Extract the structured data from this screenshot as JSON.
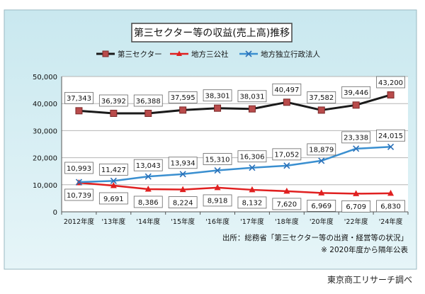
{
  "chart_data": {
    "type": "line",
    "title": "第三セクター等の収益(売上高)推移",
    "categories": [
      "2012年度",
      "'13年度",
      "'14年度",
      "'15年度",
      "'16年度",
      "'17年度",
      "'18年度",
      "'20年度",
      "'22年度",
      "'24年度"
    ],
    "series": [
      {
        "name": "第三セクター",
        "values": [
          37343,
          36392,
          36388,
          37595,
          38301,
          38031,
          40497,
          37582,
          39446,
          43200
        ],
        "labels": [
          "37,343",
          "36,392",
          "36,388",
          "37,595",
          "38,301",
          "38,031",
          "40,497",
          "37,582",
          "39,446",
          "43,200"
        ],
        "color": "#1a1a1a",
        "marker": "square"
      },
      {
        "name": "地方三公社",
        "values": [
          10739,
          9691,
          8386,
          8224,
          8918,
          8132,
          7620,
          6969,
          6709,
          6830
        ],
        "labels": [
          "10,739",
          "9,691",
          "8,386",
          "8,224",
          "8,918",
          "8,132",
          "7,620",
          "6,969",
          "6,709",
          "6,830"
        ],
        "color": "#e02020",
        "marker": "triangle"
      },
      {
        "name": "地方独立行政法人",
        "values": [
          10993,
          11427,
          13043,
          13934,
          15310,
          16306,
          17052,
          18879,
          23338,
          24015
        ],
        "labels": [
          "10,993",
          "11,427",
          "13,043",
          "13,934",
          "15,310",
          "16,306",
          "17,052",
          "18,879",
          "23,338",
          "24,015"
        ],
        "color": "#3a8fd0",
        "marker": "x"
      }
    ],
    "ylim": [
      0,
      50000
    ],
    "yticks": [
      0,
      10000,
      20000,
      30000,
      40000,
      50000
    ],
    "ytick_labels": [
      "0",
      "10,000",
      "20,000",
      "30,000",
      "40,000",
      "50,000"
    ],
    "grid": true,
    "legend_position": "top",
    "source_line1": "出所：総務省「第三セクター等の出資・経営等の状況」",
    "source_line2": "※ 2020年度から隔年公表"
  },
  "credit": "東京商工リサーチ調べ"
}
